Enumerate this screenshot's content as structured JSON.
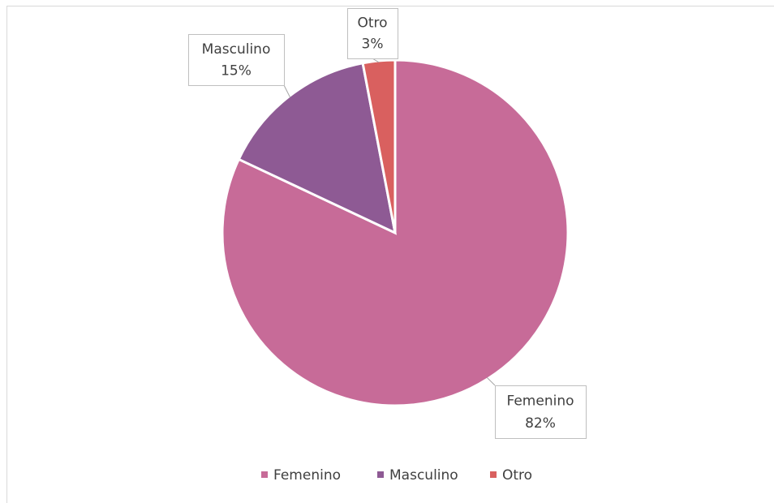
{
  "chart_data": {
    "type": "pie",
    "categories": [
      "Femenino",
      "Masculino",
      "Otro"
    ],
    "values": [
      82,
      15,
      3
    ],
    "value_labels": [
      "82%",
      "15%",
      "3%"
    ],
    "colors": [
      "#c76b98",
      "#8e5a94",
      "#d9605f"
    ],
    "legend": "bottom"
  }
}
